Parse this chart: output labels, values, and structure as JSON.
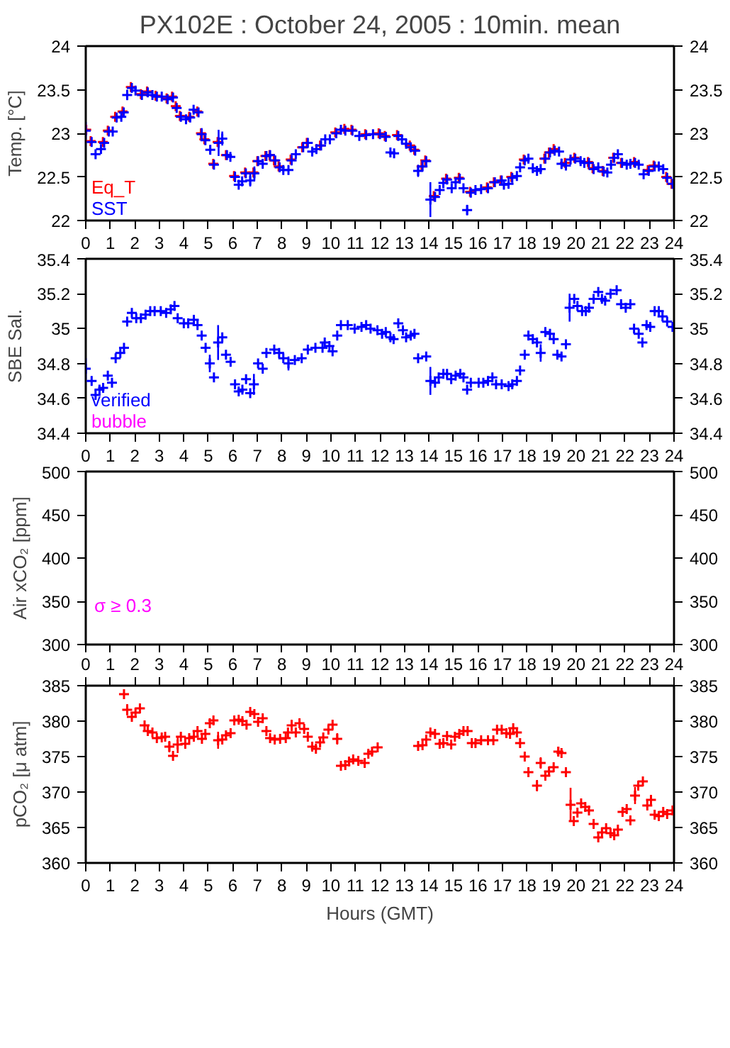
{
  "chart_data": [
    {
      "type": "scatter",
      "title": "PX102E : October 24, 2005 : 10min. mean",
      "ylabel": "Temp. [°C]",
      "marker": "cross",
      "legend": "bottom left",
      "grid": false,
      "xlim": [
        0,
        24
      ],
      "xticks": [
        0,
        1,
        2,
        3,
        4,
        5,
        6,
        7,
        8,
        9,
        10,
        11,
        12,
        13,
        14,
        15,
        16,
        17,
        18,
        19,
        20,
        21,
        22,
        23,
        24
      ],
      "ylim": [
        22,
        24
      ],
      "yticks": [
        22,
        22.5,
        23,
        23.5,
        24
      ],
      "y2lim": [
        22,
        24
      ],
      "y2ticks": [
        22,
        22.5,
        23,
        23.5,
        24
      ],
      "series": [
        {
          "name": "Eq_T",
          "color": "#ff0000",
          "x": [
            0.02,
            0.2,
            0.7,
            0.9,
            1.2,
            1.5,
            1.84,
            2.25,
            2.5,
            2.85,
            3.3,
            3.52,
            3.67,
            3.84,
            4.22,
            4.55,
            4.7,
            4.84,
            5.2,
            5.38,
            5.72,
            6.05,
            6.5,
            6.84,
            7.0,
            7.33,
            7.5,
            7.68,
            7.87,
            8.36,
            8.83,
            9.02,
            9.56,
            10.18,
            10.55,
            10.84,
            11.4,
            11.95,
            12.2,
            12.7,
            13.22,
            13.4,
            13.7,
            13.85,
            14.2,
            14.7,
            15.22,
            15.68,
            16.37,
            16.65,
            16.93,
            17.36,
            17.87,
            18.71,
            18.9,
            19.09,
            19.55,
            19.93,
            20.49,
            20.68,
            21.09,
            21.52,
            21.84,
            22.37,
            22.93,
            23.17,
            23.68,
            23.9
          ],
          "values": [
            23.04,
            22.91,
            22.9,
            23.03,
            23.19,
            23.25,
            23.53,
            23.45,
            23.48,
            23.43,
            23.4,
            23.42,
            23.31,
            23.2,
            23.19,
            23.25,
            23.0,
            22.93,
            22.65,
            22.9,
            22.75,
            22.51,
            22.55,
            22.55,
            22.68,
            22.74,
            22.75,
            22.69,
            22.62,
            22.7,
            22.84,
            22.89,
            22.86,
            23.01,
            23.05,
            23.04,
            22.99,
            23.0,
            22.97,
            22.98,
            22.86,
            22.81,
            22.62,
            22.69,
            22.28,
            22.48,
            22.49,
            22.33,
            22.38,
            22.44,
            22.46,
            22.5,
            22.7,
            22.71,
            22.78,
            22.82,
            22.66,
            22.72,
            22.67,
            22.6,
            22.57,
            22.72,
            22.66,
            22.67,
            22.58,
            22.63,
            22.5,
            22.42
          ]
        },
        {
          "name": "SST",
          "color": "#0000ff",
          "x": [
            0,
            0.24,
            0.4,
            0.62,
            0.75,
            0.94,
            1.1,
            1.26,
            1.45,
            1.55,
            1.69,
            1.88,
            2.03,
            2.29,
            2.53,
            2.72,
            2.9,
            3.1,
            3.34,
            3.56,
            3.71,
            3.88,
            4.09,
            4.26,
            4.4,
            4.6,
            4.73,
            4.88,
            5.08,
            5.23,
            5.42,
            5.57,
            5.76,
            5.9,
            6.09,
            6.24,
            6.38,
            6.53,
            6.71,
            6.88,
            7.03,
            7.22,
            7.37,
            7.52,
            7.73,
            7.91,
            8.06,
            8.27,
            8.4,
            8.57,
            8.87,
            9.06,
            9.24,
            9.41,
            9.6,
            9.77,
            9.96,
            10.22,
            10.41,
            10.59,
            10.88,
            11.16,
            11.44,
            11.72,
            12.0,
            12.24,
            12.43,
            12.58,
            12.75,
            12.9,
            13.07,
            13.26,
            13.44,
            13.56,
            13.74,
            13.89,
            14.06,
            14.25,
            14.44,
            14.59,
            14.74,
            14.93,
            15.09,
            15.26,
            15.41,
            15.56,
            15.71,
            15.9,
            16.13,
            16.41,
            16.69,
            16.97,
            17.06,
            17.25,
            17.4,
            17.59,
            17.72,
            17.91,
            18.06,
            18.24,
            18.41,
            18.56,
            18.75,
            18.94,
            19.13,
            19.31,
            19.41,
            19.59,
            19.78,
            19.97,
            20.19,
            20.34,
            20.53,
            20.72,
            20.91,
            21.13,
            21.28,
            21.43,
            21.56,
            21.71,
            21.88,
            22.07,
            22.22,
            22.41,
            22.56,
            22.76,
            22.97,
            23.21,
            23.38,
            23.56,
            23.72,
            23.94
          ],
          "values": [
            23.03,
            22.9,
            22.76,
            22.82,
            22.89,
            23.02,
            23.02,
            23.18,
            23.19,
            23.24,
            23.44,
            23.52,
            23.49,
            23.44,
            23.47,
            23.44,
            23.42,
            23.42,
            23.39,
            23.41,
            23.29,
            23.19,
            23.16,
            23.18,
            23.27,
            23.24,
            22.99,
            22.92,
            22.81,
            22.64,
            22.89,
            22.94,
            22.75,
            22.73,
            22.5,
            22.41,
            22.45,
            22.54,
            22.46,
            22.54,
            22.68,
            22.65,
            22.74,
            22.75,
            22.69,
            22.61,
            22.58,
            22.58,
            22.69,
            22.76,
            22.84,
            22.89,
            22.79,
            22.82,
            22.86,
            22.93,
            22.93,
            23.0,
            23.04,
            23.03,
            23.03,
            22.97,
            22.98,
            22.99,
            22.99,
            22.96,
            22.78,
            22.77,
            22.97,
            22.93,
            22.88,
            22.84,
            22.8,
            22.57,
            22.62,
            22.68,
            22.24,
            22.27,
            22.35,
            22.43,
            22.47,
            22.37,
            22.44,
            22.48,
            22.37,
            22.12,
            22.32,
            22.35,
            22.36,
            22.37,
            22.44,
            22.46,
            22.41,
            22.42,
            22.49,
            22.51,
            22.61,
            22.69,
            22.71,
            22.6,
            22.57,
            22.59,
            22.71,
            22.78,
            22.8,
            22.79,
            22.65,
            22.63,
            22.7,
            22.71,
            22.68,
            22.66,
            22.66,
            22.59,
            22.61,
            22.56,
            22.55,
            22.64,
            22.72,
            22.76,
            22.66,
            22.64,
            22.65,
            22.66,
            22.64,
            22.53,
            22.57,
            22.62,
            22.62,
            22.59,
            22.49,
            22.42
          ],
          "errors": [
            0.1,
            null,
            null,
            null,
            null,
            null,
            null,
            null,
            null,
            null,
            0.06,
            null,
            null,
            null,
            null,
            null,
            null,
            null,
            null,
            null,
            null,
            null,
            null,
            null,
            null,
            null,
            0.07,
            null,
            0.05,
            null,
            0.15,
            0.08,
            null,
            null,
            0.06,
            null,
            null,
            null,
            0.07,
            0.08,
            null,
            null,
            null,
            null,
            null,
            null,
            null,
            null,
            null,
            null,
            null,
            null,
            null,
            null,
            null,
            null,
            null,
            null,
            null,
            null,
            null,
            null,
            null,
            null,
            null,
            0.05,
            null,
            null,
            null,
            null,
            null,
            null,
            null,
            0.07,
            null,
            null,
            0.2,
            null,
            null,
            0.06,
            null,
            null,
            null,
            null,
            null,
            0.06,
            null,
            null,
            null,
            null,
            null,
            null,
            null,
            null,
            null,
            null,
            null,
            null,
            null,
            null,
            null,
            null,
            null,
            null,
            null,
            null,
            0.06,
            null,
            null,
            null,
            null,
            null,
            null,
            null,
            null,
            null,
            null,
            null,
            null,
            null,
            null,
            null,
            null,
            null,
            null,
            null,
            null,
            null,
            null,
            null,
            null,
            null
          ]
        }
      ]
    },
    {
      "type": "scatter",
      "ylabel": "SBE Sal.",
      "marker": "cross",
      "legend": "bottom left",
      "grid": false,
      "xlim": [
        0,
        24
      ],
      "xticks": [
        0,
        1,
        2,
        3,
        4,
        5,
        6,
        7,
        8,
        9,
        10,
        11,
        12,
        13,
        14,
        15,
        16,
        17,
        18,
        19,
        20,
        21,
        22,
        23,
        24
      ],
      "ylim": [
        34.4,
        35.4
      ],
      "yticks": [
        34.4,
        34.6,
        34.8,
        35,
        35.2,
        35.4
      ],
      "y2lim": [
        34.4,
        35.4
      ],
      "y2ticks": [
        34.4,
        34.6,
        34.8,
        35,
        35.2,
        35.4
      ],
      "series": [
        {
          "name": "verified",
          "color": "#0000ff",
          "x": [
            0,
            0.24,
            0.4,
            0.56,
            0.71,
            0.9,
            1.07,
            1.22,
            1.41,
            1.56,
            1.69,
            1.88,
            2.06,
            2.25,
            2.44,
            2.63,
            2.81,
            3.06,
            3.28,
            3.47,
            3.62,
            3.75,
            4.0,
            4.18,
            4.41,
            4.56,
            4.73,
            4.89,
            5.06,
            5.23,
            5.4,
            5.57,
            5.72,
            5.91,
            6.09,
            6.24,
            6.39,
            6.54,
            6.71,
            6.86,
            7.03,
            7.22,
            7.37,
            7.69,
            7.89,
            8.06,
            8.27,
            8.53,
            8.81,
            9.06,
            9.37,
            9.66,
            9.75,
            9.94,
            10.07,
            10.26,
            10.41,
            10.69,
            10.97,
            11.25,
            11.44,
            11.62,
            11.9,
            12.09,
            12.24,
            12.43,
            12.56,
            12.75,
            12.94,
            13.07,
            13.26,
            13.41,
            13.56,
            13.89,
            14.06,
            14.25,
            14.4,
            14.59,
            14.74,
            14.91,
            15.09,
            15.28,
            15.41,
            15.56,
            15.71,
            16.03,
            16.22,
            16.41,
            16.59,
            16.74,
            16.97,
            17.25,
            17.4,
            17.59,
            17.72,
            17.91,
            18.06,
            18.24,
            18.41,
            18.56,
            18.75,
            18.94,
            19.09,
            19.24,
            19.41,
            19.59,
            19.74,
            19.93,
            20.06,
            20.25,
            20.4,
            20.53,
            20.72,
            20.91,
            21.06,
            21.19,
            21.41,
            21.66,
            21.84,
            22.03,
            22.22,
            22.37,
            22.56,
            22.71,
            22.88,
            23.03,
            23.21,
            23.38,
            23.53,
            23.72,
            23.94
          ],
          "values": [
            34.77,
            34.7,
            34.62,
            34.65,
            34.66,
            34.73,
            34.69,
            34.83,
            34.86,
            34.89,
            35.04,
            35.09,
            35.06,
            35.06,
            35.08,
            35.1,
            35.1,
            35.1,
            35.09,
            35.11,
            35.13,
            35.06,
            35.03,
            35.03,
            35.05,
            35.02,
            34.96,
            34.89,
            34.8,
            34.72,
            34.92,
            34.95,
            34.85,
            34.81,
            34.68,
            34.64,
            34.65,
            34.71,
            34.63,
            34.68,
            34.8,
            34.77,
            34.86,
            34.88,
            34.86,
            34.83,
            34.8,
            34.82,
            34.83,
            34.88,
            34.89,
            34.89,
            34.92,
            34.9,
            34.87,
            34.96,
            35.02,
            35.02,
            35.0,
            35.01,
            35.02,
            35.0,
            34.99,
            34.97,
            34.98,
            34.95,
            34.94,
            35.03,
            34.99,
            34.95,
            34.96,
            34.97,
            34.83,
            34.84,
            34.7,
            34.69,
            34.72,
            34.74,
            34.74,
            34.71,
            34.73,
            34.74,
            34.72,
            34.65,
            34.69,
            34.69,
            34.69,
            34.7,
            34.72,
            34.68,
            34.68,
            34.67,
            34.68,
            34.7,
            34.76,
            34.85,
            34.96,
            34.94,
            34.92,
            34.86,
            34.98,
            34.97,
            34.94,
            34.85,
            34.84,
            34.91,
            35.12,
            35.17,
            35.13,
            35.1,
            35.1,
            35.12,
            35.17,
            35.21,
            35.17,
            35.16,
            35.2,
            35.22,
            35.14,
            35.12,
            35.14,
            35.0,
            34.97,
            34.92,
            35.02,
            35.01,
            35.1,
            35.1,
            35.07,
            35.04,
            35.01
          ],
          "errors": [
            0.06,
            null,
            null,
            null,
            null,
            null,
            null,
            null,
            null,
            null,
            null,
            null,
            null,
            null,
            null,
            null,
            null,
            null,
            null,
            null,
            null,
            null,
            null,
            null,
            null,
            null,
            null,
            null,
            0.05,
            null,
            0.1,
            null,
            null,
            null,
            null,
            null,
            null,
            null,
            null,
            0.06,
            null,
            null,
            null,
            null,
            null,
            null,
            0.04,
            null,
            null,
            null,
            null,
            null,
            null,
            null,
            null,
            null,
            null,
            null,
            null,
            null,
            null,
            null,
            null,
            null,
            null,
            null,
            null,
            null,
            null,
            null,
            null,
            null,
            null,
            null,
            0.08,
            null,
            null,
            null,
            null,
            null,
            null,
            null,
            null,
            null,
            null,
            null,
            null,
            null,
            null,
            null,
            null,
            null,
            null,
            null,
            null,
            null,
            null,
            null,
            null,
            0.05,
            null,
            null,
            null,
            null,
            null,
            null,
            0.08,
            null,
            null,
            null,
            null,
            null,
            null,
            null,
            null,
            null,
            null,
            null,
            null,
            null,
            null,
            null,
            null,
            null,
            null,
            null,
            null,
            null,
            null,
            null,
            null
          ]
        },
        {
          "name": "bubble",
          "color": "#ff00ff"
        }
      ]
    },
    {
      "type": "scatter",
      "ylabel": "Air xCO₂ [ppm]",
      "grid": false,
      "tick_labels": "y",
      "xlim": [
        0,
        24
      ],
      "xticks": [
        0,
        1,
        2,
        3,
        4,
        5,
        6,
        7,
        8,
        9,
        10,
        11,
        12,
        13,
        14,
        15,
        16,
        17,
        18,
        19,
        20,
        21,
        22,
        23,
        24
      ],
      "ylim": [
        300,
        500
      ],
      "yticks": [
        300,
        350,
        400,
        450,
        500
      ],
      "y2lim": [
        300,
        500
      ],
      "y2ticks": [
        300,
        350,
        400,
        450,
        500
      ],
      "annotations": [
        "σ ≥ 0.3"
      ]
    },
    {
      "type": "scatter",
      "xlabel": "Hours (GMT)",
      "ylabel": "pCO₂ [μ atm]",
      "marker": "cross",
      "grid": false,
      "xlim": [
        0,
        24
      ],
      "xticks": [
        0,
        1,
        2,
        3,
        4,
        5,
        6,
        7,
        8,
        9,
        10,
        11,
        12,
        13,
        14,
        15,
        16,
        17,
        18,
        19,
        20,
        21,
        22,
        23,
        24
      ],
      "x2lim": [
        0,
        24
      ],
      "x2ticks": [
        0,
        1,
        2,
        3,
        4,
        5,
        6,
        7,
        8,
        9,
        10,
        11,
        12,
        13,
        14,
        15,
        16,
        17,
        18,
        19,
        20,
        21,
        22,
        23,
        24
      ],
      "ylim": [
        360,
        385
      ],
      "yticks": [
        360,
        365,
        370,
        375,
        380,
        385
      ],
      "y2lim": [
        360,
        385
      ],
      "y2ticks": [
        360,
        365,
        370,
        375,
        380,
        385
      ],
      "series": [
        {
          "color": "#ff0000",
          "x": [
            1.56,
            1.69,
            1.88,
            2.03,
            2.21,
            2.4,
            2.53,
            2.72,
            2.9,
            3.1,
            3.24,
            3.41,
            3.56,
            3.75,
            3.88,
            4.06,
            4.22,
            4.41,
            4.56,
            4.74,
            4.88,
            5.06,
            5.21,
            5.4,
            5.57,
            5.72,
            5.91,
            6.06,
            6.24,
            6.39,
            6.56,
            6.71,
            6.88,
            7.03,
            7.22,
            7.37,
            7.52,
            7.71,
            7.93,
            8.16,
            8.25,
            8.4,
            8.57,
            8.72,
            8.91,
            9.06,
            9.24,
            9.39,
            9.56,
            9.69,
            9.9,
            10.07,
            10.26,
            10.41,
            10.59,
            10.74,
            10.91,
            11.12,
            11.38,
            11.53,
            11.68,
            11.91,
            13.56,
            13.74,
            13.89,
            14.06,
            14.25,
            14.44,
            14.59,
            14.74,
            14.91,
            15.06,
            15.24,
            15.41,
            15.58,
            15.75,
            15.9,
            16.13,
            16.41,
            16.63,
            16.78,
            16.97,
            17.16,
            17.31,
            17.44,
            17.59,
            17.72,
            17.91,
            18.06,
            18.41,
            18.56,
            18.75,
            18.9,
            19.09,
            19.28,
            19.41,
            19.59,
            19.78,
            19.91,
            20.06,
            20.21,
            20.38,
            20.53,
            20.72,
            20.91,
            21.06,
            21.23,
            21.41,
            21.56,
            21.71,
            21.9,
            22.07,
            22.22,
            22.41,
            22.54,
            22.73,
            22.91,
            23.06,
            23.21,
            23.38,
            23.56,
            23.72,
            23.94
          ],
          "values": [
            383.8,
            381.6,
            380.6,
            381.2,
            381.8,
            379.4,
            378.6,
            378.4,
            377.6,
            377.7,
            377.8,
            376.4,
            375.1,
            376.7,
            377.8,
            376.8,
            377.6,
            377.8,
            378.6,
            377.5,
            378.2,
            379.7,
            380.1,
            377.3,
            377.4,
            378.0,
            378.3,
            380.1,
            380.2,
            380.0,
            379.5,
            381.3,
            381.0,
            379.9,
            380.4,
            378.6,
            377.6,
            377.4,
            377.5,
            377.6,
            378.4,
            379.4,
            378.4,
            379.7,
            378.9,
            377.8,
            376.4,
            376.1,
            377.0,
            377.7,
            378.8,
            379.5,
            377.5,
            373.7,
            373.8,
            374.3,
            374.6,
            374.4,
            374.1,
            375.4,
            375.7,
            376.3,
            376.5,
            376.6,
            377.4,
            378.4,
            378.2,
            376.8,
            376.9,
            377.9,
            376.7,
            377.8,
            378.2,
            378.6,
            378.6,
            376.9,
            376.9,
            377.3,
            377.3,
            377.3,
            378.8,
            378.8,
            378.3,
            378.2,
            379.0,
            378.4,
            376.9,
            375.0,
            372.8,
            370.9,
            374.1,
            372.3,
            372.9,
            373.5,
            375.7,
            375.5,
            372.8,
            368.2,
            365.9,
            367.1,
            368.4,
            367.9,
            367.4,
            365.5,
            363.6,
            364.3,
            364.9,
            364.2,
            363.9,
            364.7,
            367.2,
            367.6,
            366.0,
            369.5,
            370.9,
            371.5,
            368.1,
            368.9,
            366.8,
            366.6,
            367.2,
            366.9,
            367.4
          ],
          "errors": [
            null,
            0.8,
            null,
            null,
            null,
            null,
            null,
            null,
            null,
            null,
            null,
            0.8,
            null,
            1.2,
            null,
            null,
            null,
            null,
            null,
            null,
            null,
            null,
            null,
            1.2,
            null,
            null,
            null,
            null,
            null,
            null,
            null,
            null,
            null,
            null,
            null,
            null,
            null,
            null,
            null,
            null,
            null,
            0.8,
            null,
            null,
            null,
            null,
            null,
            null,
            null,
            null,
            null,
            null,
            0.8,
            null,
            null,
            null,
            null,
            null,
            null,
            null,
            null,
            null,
            null,
            null,
            null,
            null,
            null,
            null,
            null,
            null,
            null,
            null,
            null,
            null,
            null,
            null,
            null,
            null,
            null,
            null,
            null,
            null,
            null,
            null,
            null,
            null,
            null,
            null,
            null,
            0.8,
            0.8,
            null,
            null,
            null,
            0.7,
            null,
            null,
            2.4,
            null,
            null,
            null,
            null,
            null,
            null,
            null,
            null,
            null,
            null,
            null,
            null,
            null,
            null,
            null,
            1.2,
            null,
            null,
            null,
            null,
            null,
            null,
            null,
            null,
            null
          ]
        }
      ]
    }
  ]
}
